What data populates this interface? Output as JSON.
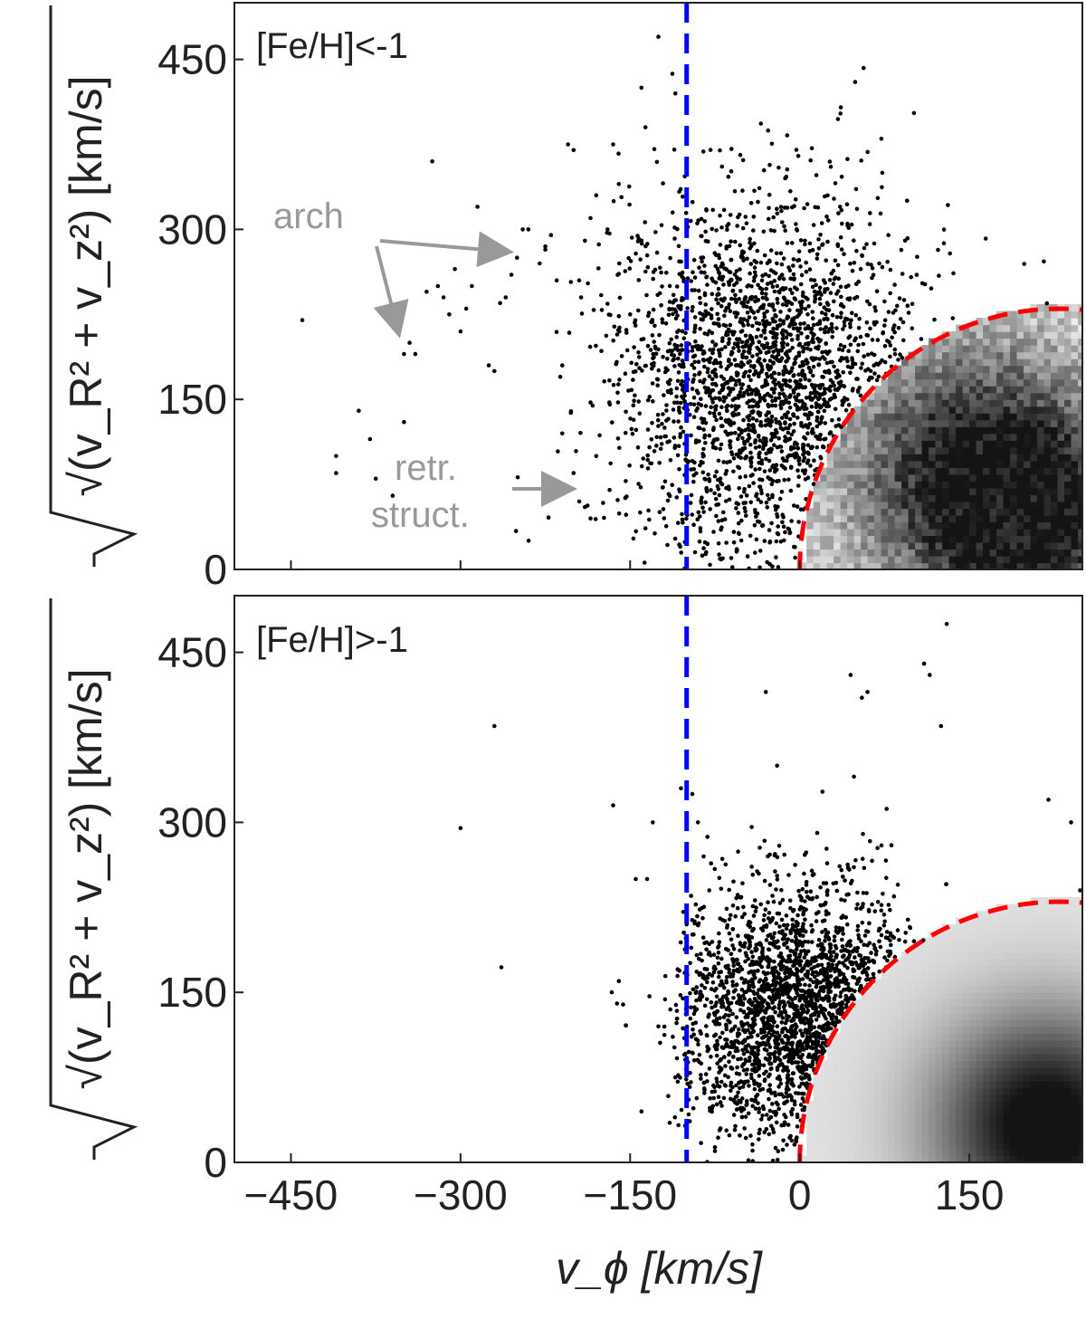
{
  "chart_data": [
    {
      "type": "scatter",
      "panel_label": "[Fe/H]<-1",
      "xlim": [
        -500,
        250
      ],
      "ylim": [
        0,
        500
      ],
      "xticks": [
        -450,
        -300,
        -150,
        0,
        150
      ],
      "yticks": [
        0,
        150,
        300,
        450
      ],
      "tick_labels_x": [],
      "tick_labels_y": [
        "0",
        "150",
        "300",
        "450"
      ],
      "ylabel": "√(v_R² + v_z²) [km/s]",
      "xlabel": "",
      "vertical_line": {
        "x": -100,
        "color": "#0000ff",
        "style": "dashed"
      },
      "circle_boundary": {
        "center_x": 230,
        "center_y": 0,
        "radius": 230,
        "color": "#ff0000",
        "style": "dashed"
      },
      "density_region": {
        "description_color": "#000000",
        "peak_x": 200,
        "peak_y": 40,
        "secondary_peak_x": 140,
        "secondary_peak_y": 100
      },
      "scatter_cluster": {
        "center_x": -30,
        "center_y": 170,
        "sx": 65,
        "sy": 80,
        "n": 2300
      },
      "scatter_sparse": [
        [
          -440,
          220
        ],
        [
          -410,
          100
        ],
        [
          -410,
          85
        ],
        [
          -390,
          140
        ],
        [
          -380,
          115
        ],
        [
          -375,
          80
        ],
        [
          -360,
          65
        ],
        [
          -350,
          190
        ],
        [
          -345,
          200
        ],
        [
          -340,
          190
        ],
        [
          -350,
          130
        ],
        [
          -330,
          245
        ],
        [
          -325,
          360
        ],
        [
          -320,
          250
        ],
        [
          -315,
          240
        ],
        [
          -310,
          225
        ],
        [
          -305,
          265
        ],
        [
          -300,
          210
        ],
        [
          -295,
          230
        ],
        [
          -290,
          250
        ],
        [
          -285,
          320
        ],
        [
          -275,
          180
        ],
        [
          -270,
          175
        ],
        [
          -265,
          235
        ],
        [
          -260,
          240
        ],
        [
          -255,
          260
        ],
        [
          -250,
          275
        ],
        [
          -245,
          300
        ],
        [
          -240,
          300
        ],
        [
          -230,
          270
        ],
        [
          -225,
          285
        ],
        [
          -220,
          295
        ],
        [
          -215,
          255
        ],
        [
          -210,
          180
        ],
        [
          -205,
          375
        ],
        [
          -200,
          370
        ],
        [
          -195,
          255
        ],
        [
          -190,
          290
        ],
        [
          -185,
          310
        ],
        [
          -180,
          330
        ],
        [
          -170,
          300
        ],
        [
          -165,
          375
        ],
        [
          -160,
          340
        ],
        [
          -150,
          225
        ],
        [
          -140,
          425
        ],
        [
          -125,
          470
        ],
        [
          -110,
          420
        ],
        [
          -210,
          120
        ],
        [
          -200,
          85
        ],
        [
          -195,
          60
        ],
        [
          -190,
          55
        ],
        [
          -185,
          45
        ],
        [
          -180,
          100
        ]
      ],
      "annotations": [
        {
          "text": "arch"
        },
        {
          "text": "retr."
        },
        {
          "text": "struct."
        }
      ],
      "annotation_color": "#999999"
    },
    {
      "type": "scatter",
      "panel_label": "[Fe/H]>-1",
      "xlim": [
        -500,
        250
      ],
      "ylim": [
        0,
        500
      ],
      "xticks": [
        -450,
        -300,
        -150,
        0,
        150
      ],
      "yticks": [
        0,
        150,
        300,
        450
      ],
      "tick_labels_x": [
        "−450",
        "−300",
        "−150",
        "0",
        "150"
      ],
      "tick_labels_y": [
        "0",
        "150",
        "300",
        "450"
      ],
      "ylabel": "√(v_R² + v_z²) [km/s]",
      "xlabel": "v_ϕ [km/s]",
      "vertical_line": {
        "x": -100,
        "color": "#0000ff",
        "style": "dashed"
      },
      "circle_boundary": {
        "center_x": 230,
        "center_y": 0,
        "radius": 230,
        "color": "#ff0000",
        "style": "dashed"
      },
      "density_region": {
        "description_color": "#000000",
        "peak_x": 215,
        "peak_y": 30
      },
      "scatter_cluster": {
        "center_x": 0,
        "center_y": 130,
        "sx": 55,
        "sy": 55,
        "n": 2200
      },
      "scatter_sparse": [
        [
          -300,
          295
        ],
        [
          -270,
          385
        ],
        [
          -165,
          315
        ],
        [
          -160,
          160
        ],
        [
          -145,
          250
        ],
        [
          -140,
          45
        ],
        [
          -135,
          250
        ],
        [
          -130,
          300
        ],
        [
          -125,
          120
        ],
        [
          -115,
          35
        ],
        [
          -110,
          75
        ],
        [
          -105,
          330
        ],
        [
          -100,
          210
        ],
        [
          -95,
          325
        ],
        [
          -90,
          300
        ],
        [
          -85,
          270
        ],
        [
          -80,
          240
        ],
        [
          -75,
          10
        ],
        [
          -70,
          30
        ],
        [
          -30,
          415
        ],
        [
          -20,
          350
        ],
        [
          45,
          430
        ],
        [
          60,
          415
        ],
        [
          55,
          410
        ],
        [
          130,
          475
        ],
        [
          110,
          440
        ],
        [
          115,
          430
        ],
        [
          125,
          385
        ],
        [
          220,
          320
        ],
        [
          240,
          300
        ],
        [
          248,
          240
        ]
      ]
    }
  ]
}
